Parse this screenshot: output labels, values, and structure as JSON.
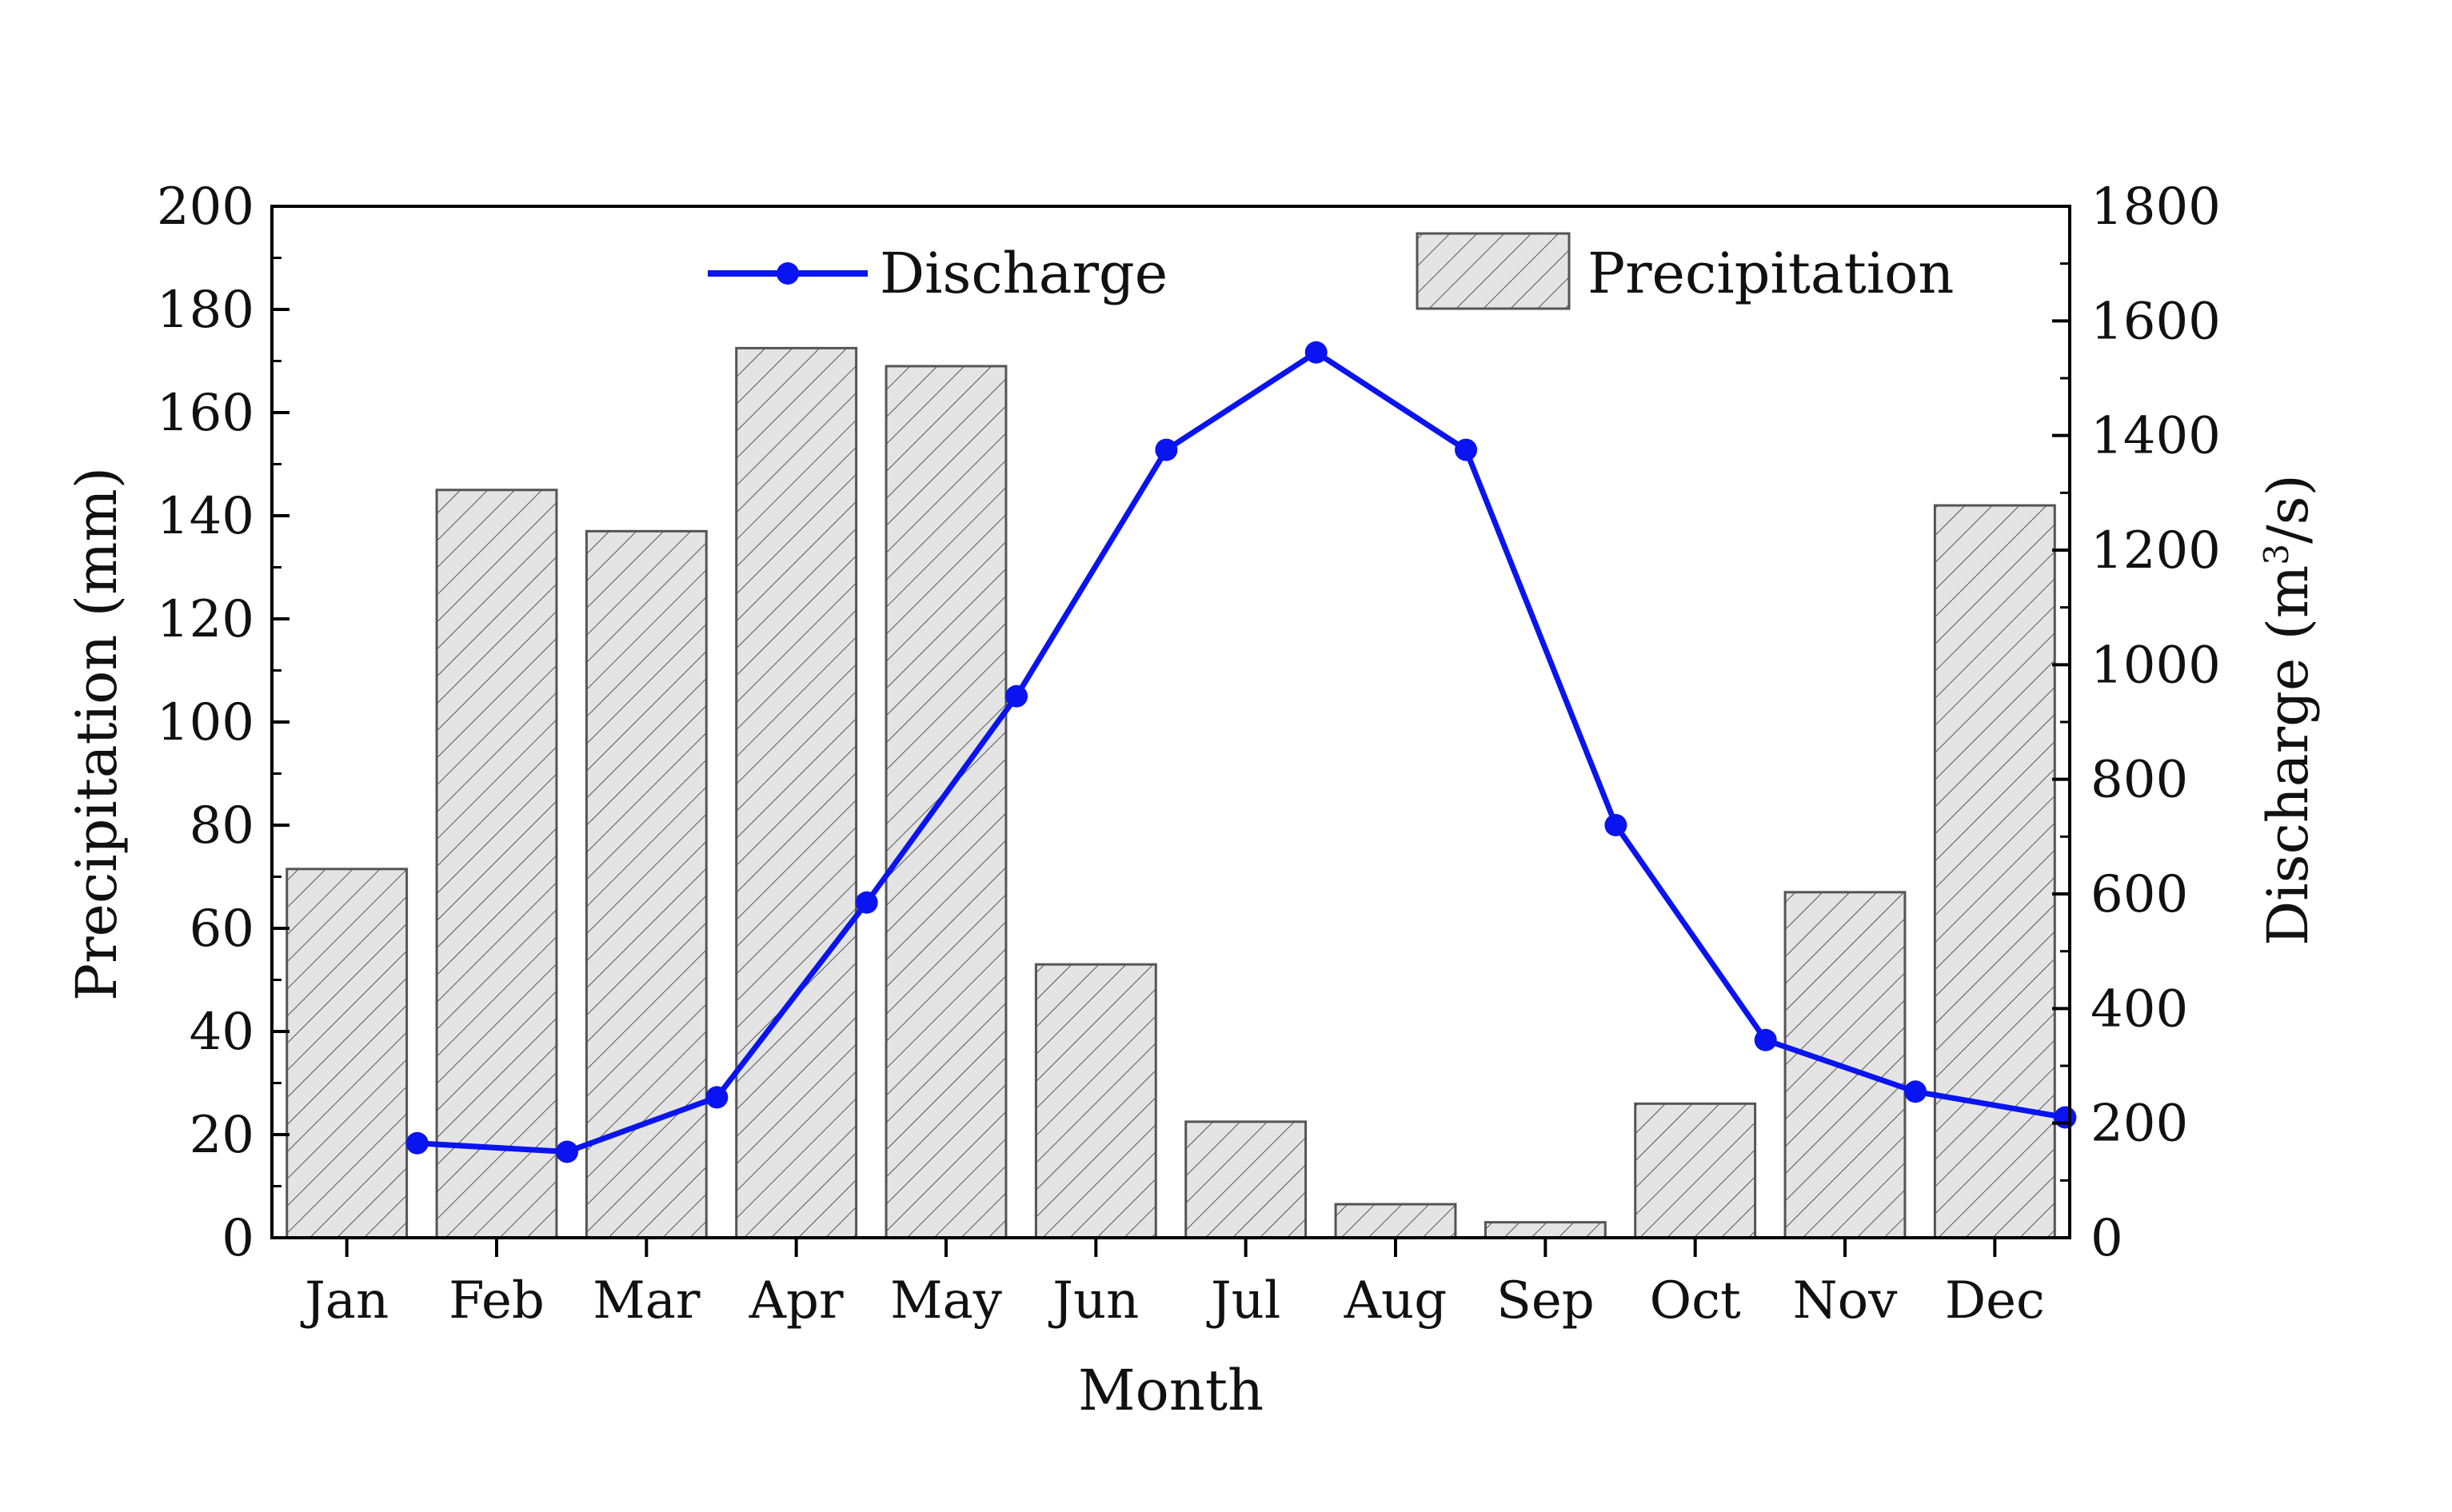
{
  "chart_data": {
    "type": "bar",
    "title": "",
    "categories": [
      "Jan",
      "Feb",
      "Mar",
      "Apr",
      "May",
      "Jun",
      "Jul",
      "Aug",
      "Sep",
      "Oct",
      "Nov",
      "Dec"
    ],
    "series": [
      {
        "name": "Precipitation",
        "type": "bar",
        "axis": "left",
        "values": [
          71.5,
          145,
          137,
          172.5,
          169,
          53,
          22.5,
          6.5,
          3,
          26,
          67,
          142
        ]
      },
      {
        "name": "Discharge",
        "type": "line",
        "axis": "right",
        "values": [
          165,
          150,
          245,
          585,
          945,
          1375,
          1545,
          1375,
          720,
          345,
          255,
          210
        ]
      }
    ],
    "xlabel": "Month",
    "ylabel": "Precipitation (mm)",
    "y2label_prefix": "Discharge (m",
    "y2label_sup": "3",
    "y2label_suffix": "/s)",
    "ylim": [
      0,
      200
    ],
    "y2lim": [
      0,
      1800
    ],
    "yticks": [
      "0",
      "20",
      "40",
      "60",
      "80",
      "100",
      "120",
      "140",
      "160",
      "180",
      "200"
    ],
    "y2ticks": [
      "0",
      "200",
      "400",
      "600",
      "800",
      "1000",
      "1200",
      "1400",
      "1600",
      "1800"
    ],
    "legend": [
      "Discharge",
      "Precipitation"
    ],
    "legend_position": "top",
    "grid": false,
    "colors": {
      "line": "#0a14f0",
      "bar_fill": "#e4e4e4",
      "bar_hatch": "#555555",
      "axis": "#000000"
    }
  }
}
